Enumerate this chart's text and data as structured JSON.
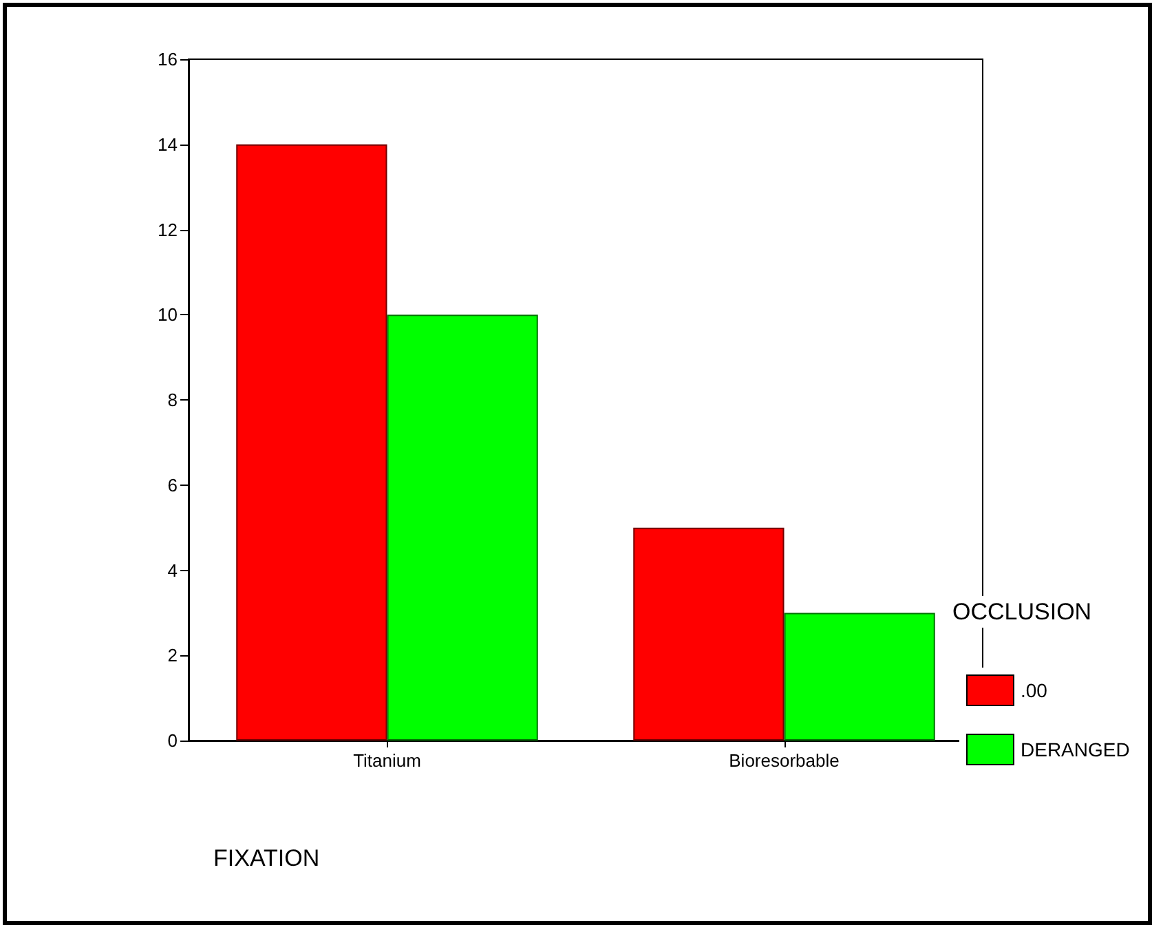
{
  "chart_data": {
    "type": "bar",
    "xlabel": "FIXATION",
    "legend_title": "OCCLUSION",
    "categories": [
      "Titanium",
      "Bioresorbable"
    ],
    "series": [
      {
        "name": ".00",
        "color": "#ff0000",
        "values": [
          14,
          5
        ]
      },
      {
        "name": "DERANGED",
        "color": "#00ff00",
        "values": [
          10,
          3
        ]
      }
    ],
    "ylim": [
      0,
      16
    ],
    "yticks": [
      0,
      2,
      4,
      6,
      8,
      10,
      12,
      14,
      16
    ],
    "grid": false,
    "legend": "right"
  }
}
